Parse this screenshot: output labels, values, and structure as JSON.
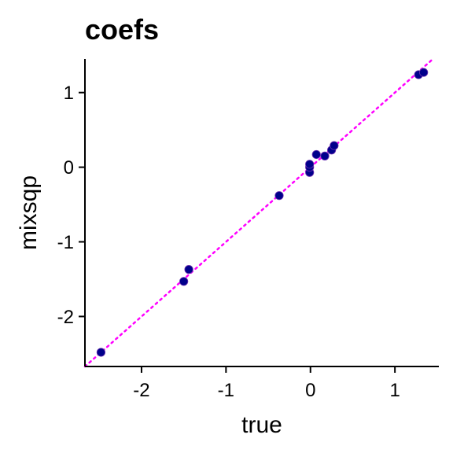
{
  "chart_data": {
    "type": "scatter",
    "title": "coefs",
    "xlabel": "true",
    "ylabel": "mixsqp",
    "xlim": [
      -2.67,
      1.52
    ],
    "ylim": [
      -2.67,
      1.45
    ],
    "xticks": [
      -2,
      -1,
      0,
      1
    ],
    "yticks": [
      -2,
      -1,
      0,
      1
    ],
    "xtick_labels": [
      "-2",
      "-1",
      "0",
      "1"
    ],
    "ytick_labels": [
      "-2",
      "-1",
      "0",
      "1"
    ],
    "grid": false,
    "legend": "none",
    "reference_line": {
      "slope": 1,
      "intercept": 0,
      "style": "dotted",
      "color": "#ff00ff"
    },
    "point_color": "#00008b",
    "series": [
      {
        "x": [
          -2.48,
          -1.5,
          -1.44,
          -0.37,
          -0.01,
          -0.01,
          -0.01,
          0.07,
          0.17,
          0.25,
          0.28,
          1.28,
          1.34
        ],
        "y": [
          -2.48,
          -1.53,
          -1.37,
          -0.38,
          -0.07,
          0.0,
          0.04,
          0.17,
          0.15,
          0.23,
          0.29,
          1.24,
          1.27
        ]
      }
    ]
  }
}
